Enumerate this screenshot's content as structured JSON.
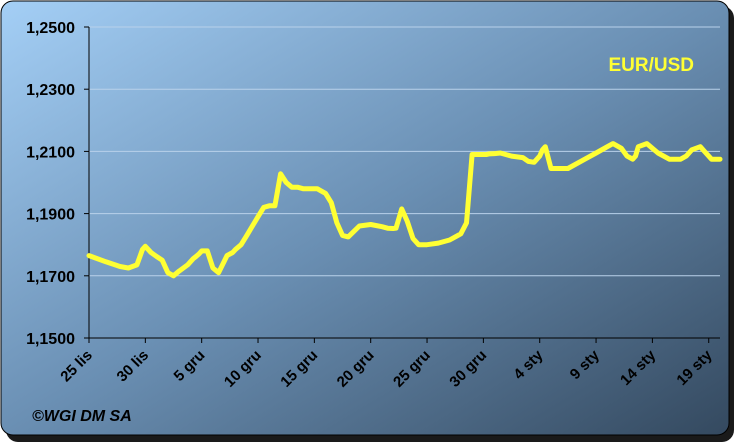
{
  "chart_data": {
    "type": "line",
    "title": "",
    "xlabel": "",
    "ylabel": "",
    "ylim": [
      1.15,
      1.25
    ],
    "y_ticks": [
      1.15,
      1.17,
      1.19,
      1.21,
      1.23,
      1.25
    ],
    "y_tick_labels": [
      "1,1500",
      "1,1700",
      "1,1900",
      "1,2100",
      "1,2300",
      "1,2500"
    ],
    "x_tick_labels": [
      "25 lis",
      "30 lis",
      "5 gru",
      "10 gru",
      "15 gru",
      "20 gru",
      "25 gru",
      "30 gru",
      "4 sty",
      "9 sty",
      "14 sty",
      "19 sty"
    ],
    "grid": true,
    "series": [
      {
        "name": "EUR/USD",
        "color": "#ffff33",
        "x": [
          0.0,
          0.3,
          0.55,
          0.7,
          0.85,
          0.95,
          1.0,
          1.1,
          1.2,
          1.3,
          1.4,
          1.5,
          1.6,
          1.75,
          1.85,
          1.9,
          1.95,
          2.0,
          2.1,
          2.2,
          2.3,
          2.45,
          2.55,
          2.6,
          2.7,
          2.8,
          2.9,
          3.0,
          3.1,
          3.2,
          3.3,
          3.4,
          3.5,
          3.6,
          3.7,
          3.8,
          3.9,
          3.95,
          4.0,
          4.05,
          4.1,
          4.2,
          4.3,
          4.4,
          4.5,
          4.6,
          4.8,
          5.0,
          5.2,
          5.3,
          5.4,
          5.45,
          5.55,
          5.65,
          5.75,
          5.85,
          6.0,
          6.2,
          6.4,
          6.5,
          6.6,
          6.7,
          6.8,
          6.9,
          6.95,
          7.05,
          7.1,
          7.2,
          7.3,
          7.5,
          7.7,
          7.8,
          7.9,
          8.0,
          8.05,
          8.1,
          8.2,
          8.5,
          8.8,
          9.0,
          9.2,
          9.3,
          9.45,
          9.55,
          9.65,
          9.7,
          9.75,
          9.9,
          10.1,
          10.3,
          10.5,
          10.6,
          10.7,
          10.85,
          10.95,
          11.0,
          11.05,
          11.1,
          11.2
        ],
        "values": [
          1.1765,
          1.1745,
          1.173,
          1.1725,
          1.1735,
          1.1785,
          1.1795,
          1.1775,
          1.1762,
          1.175,
          1.171,
          1.17,
          1.1715,
          1.1735,
          1.1755,
          1.1762,
          1.177,
          1.178,
          1.178,
          1.1725,
          1.171,
          1.1765,
          1.1775,
          1.1785,
          1.18,
          1.183,
          1.186,
          1.189,
          1.192,
          1.1925,
          1.1925,
          1.2028,
          1.2,
          1.1985,
          1.1985,
          1.198,
          1.198,
          1.198,
          1.198,
          1.198,
          1.1975,
          1.1965,
          1.1935,
          1.187,
          1.183,
          1.1825,
          1.186,
          1.1865,
          1.1858,
          1.1853,
          1.1852,
          1.1853,
          1.1915,
          1.1875,
          1.182,
          1.18,
          1.18,
          1.1805,
          1.1815,
          1.1825,
          1.1835,
          1.187,
          1.209,
          1.209,
          1.209,
          1.209,
          1.2092,
          1.2093,
          1.2095,
          1.2085,
          1.208,
          1.2068,
          1.2065,
          1.2085,
          1.2105,
          1.2115,
          1.2045,
          1.2045,
          1.2075,
          1.2095,
          1.2115,
          1.2125,
          1.211,
          1.2085,
          1.2075,
          1.2085,
          1.2115,
          1.2125,
          1.2095,
          1.2075,
          1.2075,
          1.2085,
          1.2105,
          1.2115,
          1.2095,
          1.2085,
          1.2075,
          1.2075,
          1.2075
        ]
      }
    ],
    "legend_placement": "top-right"
  },
  "copyright": "©WGI DM SA",
  "colors": {
    "background_top": "#9dc8f0",
    "background_bottom": "#3d5570",
    "line": "#ffff33",
    "grid": "#b9d1ea",
    "axis": "#000000"
  }
}
